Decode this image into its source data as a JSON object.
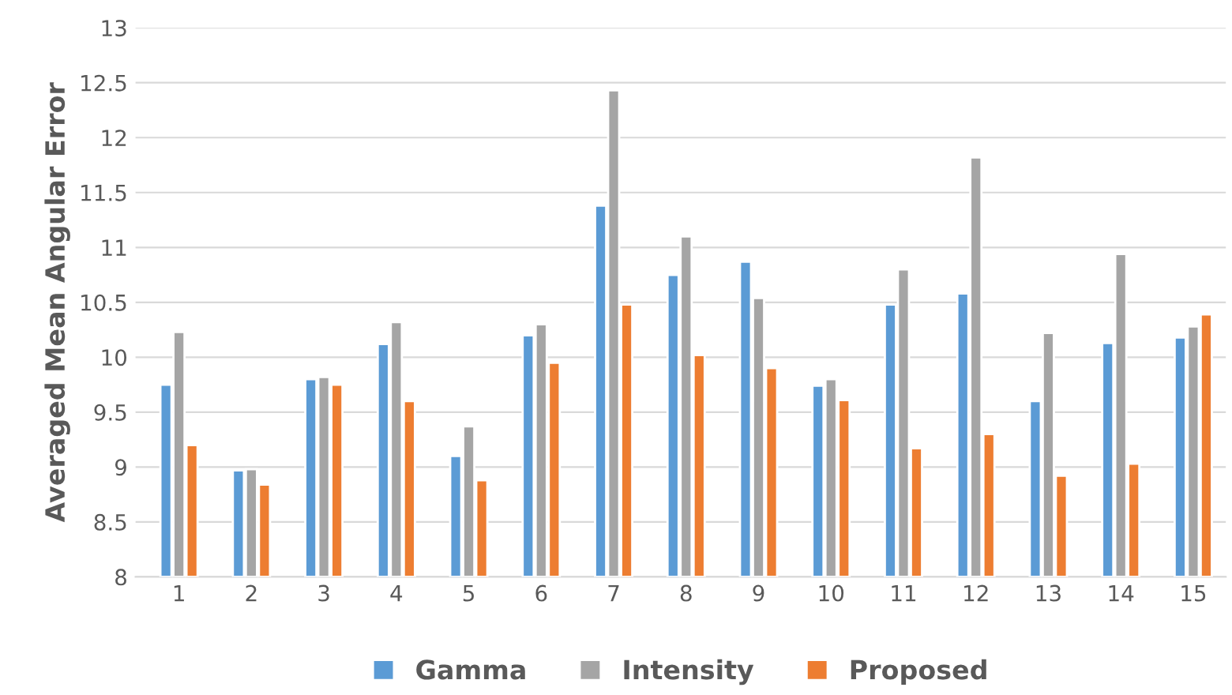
{
  "chart_data": {
    "type": "bar",
    "ylabel": "Averaged Mean Angular Error",
    "categories": [
      "1",
      "2",
      "3",
      "4",
      "5",
      "6",
      "7",
      "8",
      "9",
      "10",
      "11",
      "12",
      "13",
      "14",
      "15"
    ],
    "series": [
      {
        "name": "Gamma",
        "color": "#5b9bd5",
        "values": [
          9.75,
          8.97,
          9.8,
          10.12,
          9.1,
          10.2,
          11.38,
          10.75,
          10.87,
          9.74,
          10.48,
          10.58,
          9.6,
          10.13,
          10.18
        ]
      },
      {
        "name": "Intensity",
        "color": "#a5a5a5",
        "values": [
          10.23,
          8.98,
          9.82,
          10.32,
          9.37,
          10.3,
          12.43,
          11.1,
          10.54,
          9.8,
          10.8,
          11.82,
          10.22,
          10.94,
          10.28
        ]
      },
      {
        "name": "Proposed",
        "color": "#ed7d31",
        "values": [
          9.2,
          8.84,
          9.75,
          9.6,
          8.88,
          9.95,
          10.48,
          10.02,
          9.9,
          9.61,
          9.17,
          9.3,
          8.92,
          9.03,
          10.39
        ]
      }
    ],
    "ylim": [
      8,
      13
    ],
    "yticks": [
      8,
      8.5,
      9,
      9.5,
      10,
      10.5,
      11,
      11.5,
      12,
      12.5,
      13
    ],
    "grid": "y",
    "legend": "bottom"
  }
}
